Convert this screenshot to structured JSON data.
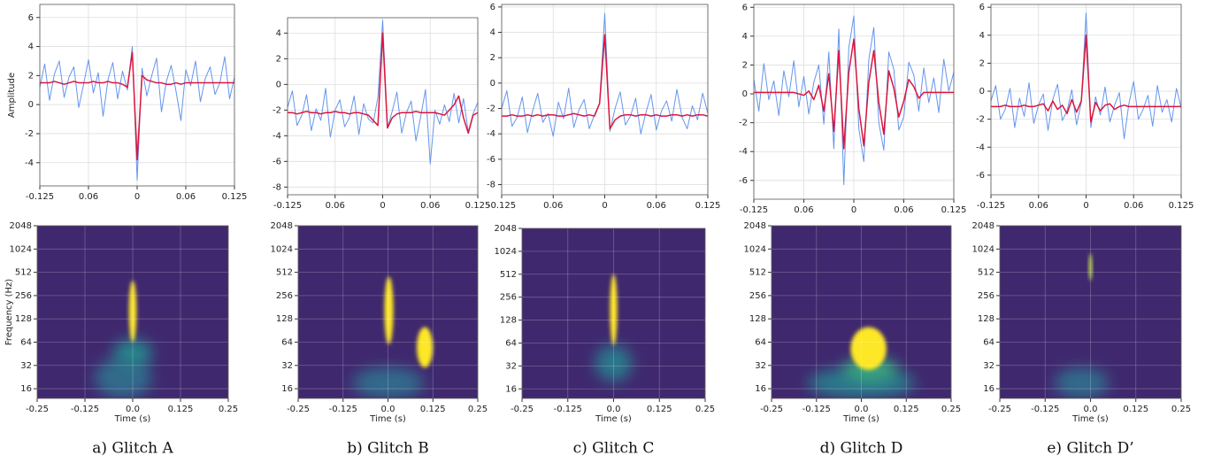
{
  "chart_data": [
    {
      "type": "line",
      "ylabel": "Amplitude",
      "grid": true,
      "x": [
        -0.125,
        -0.11875,
        -0.1125,
        -0.10625,
        -0.1,
        -0.09375,
        -0.0875,
        -0.08125,
        -0.075,
        -0.06875,
        -0.0625,
        -0.05625,
        -0.05,
        -0.04375,
        -0.0375,
        -0.03125,
        -0.025,
        -0.01875,
        -0.0125,
        -0.00625,
        0,
        0.00625,
        0.0125,
        0.01875,
        0.025,
        0.03125,
        0.0375,
        0.04375,
        0.05,
        0.05625,
        0.0625,
        0.06875,
        0.075,
        0.08125,
        0.0875,
        0.09375,
        0.1,
        0.10625,
        0.1125,
        0.11875,
        0.125
      ],
      "series": [
        {
          "color": "#6495ed",
          "values": [
            1.2,
            2.8,
            0.3,
            2.1,
            3.0,
            0.5,
            1.9,
            2.6,
            -0.2,
            1.4,
            3.1,
            0.8,
            2.2,
            -0.8,
            1.7,
            2.9,
            0.4,
            2.3,
            1.0,
            4.0,
            -5.2,
            2.5,
            0.6,
            2.0,
            3.2,
            -0.5,
            1.6,
            2.7,
            0.9,
            -1.1,
            2.4,
            1.3,
            3.0,
            0.2,
            1.8,
            2.6,
            0.7,
            1.5,
            3.3,
            0.4,
            1.9
          ]
        },
        {
          "color": "#dc143c",
          "values": [
            1.5,
            1.5,
            1.5,
            1.6,
            1.5,
            1.4,
            1.5,
            1.6,
            1.5,
            1.5,
            1.5,
            1.6,
            1.5,
            1.5,
            1.6,
            1.5,
            1.5,
            1.4,
            1.2,
            3.6,
            -3.8,
            2.0,
            1.7,
            1.6,
            1.5,
            1.5,
            1.4,
            1.4,
            1.5,
            1.4,
            1.5,
            1.5,
            1.5,
            1.5,
            1.5,
            1.5,
            1.5,
            1.5,
            1.5,
            1.5,
            1.5
          ]
        }
      ],
      "xlim": [
        -0.125,
        0.125
      ],
      "xticks": [
        -0.125,
        {
          "value": -0.0625,
          "label": "0.06"
        },
        0,
        {
          "value": 0.0625,
          "label": "0.06"
        },
        0.125
      ],
      "ylim": [
        -5.6,
        6.9
      ],
      "yticks": [
        -4,
        -2,
        0,
        2,
        4,
        6
      ]
    },
    {
      "type": "line",
      "grid": true,
      "x": [
        -0.125,
        -0.11875,
        -0.1125,
        -0.10625,
        -0.1,
        -0.09375,
        -0.0875,
        -0.08125,
        -0.075,
        -0.06875,
        -0.0625,
        -0.05625,
        -0.05,
        -0.04375,
        -0.0375,
        -0.03125,
        -0.025,
        -0.01875,
        -0.0125,
        -0.00625,
        0,
        0.00625,
        0.0125,
        0.01875,
        0.025,
        0.03125,
        0.0375,
        0.04375,
        0.05,
        0.05625,
        0.0625,
        0.06875,
        0.075,
        0.08125,
        0.0875,
        0.09375,
        0.1,
        0.10625,
        0.1125,
        0.11875,
        0.125
      ],
      "series": [
        {
          "color": "#6495ed",
          "values": [
            -1.8,
            -0.5,
            -3.2,
            -2.4,
            -0.8,
            -3.6,
            -1.9,
            -2.8,
            -0.3,
            -4.1,
            -2.0,
            -1.2,
            -3.3,
            -2.6,
            -0.9,
            -3.9,
            -1.5,
            -2.7,
            -3.0,
            -1.0,
            5.0,
            -3.4,
            -2.1,
            -0.6,
            -3.8,
            -2.2,
            -1.3,
            -4.4,
            -2.5,
            -0.4,
            -6.2,
            -2.0,
            -3.1,
            -1.6,
            -2.9,
            -0.7,
            -3.0,
            -1.1,
            -3.7,
            -2.3,
            -1.4
          ]
        },
        {
          "color": "#dc143c",
          "values": [
            -2.2,
            -2.2,
            -2.3,
            -2.2,
            -2.1,
            -2.2,
            -2.2,
            -2.3,
            -2.2,
            -2.2,
            -2.1,
            -2.2,
            -2.2,
            -2.3,
            -2.2,
            -2.2,
            -2.3,
            -2.4,
            -2.8,
            -3.2,
            4.0,
            -3.4,
            -2.6,
            -2.3,
            -2.2,
            -2.2,
            -2.2,
            -2.1,
            -2.2,
            -2.2,
            -2.2,
            -2.2,
            -2.3,
            -2.4,
            -2.0,
            -1.6,
            -0.9,
            -2.6,
            -3.8,
            -2.4,
            -2.2
          ]
        }
      ],
      "xlim": [
        -0.125,
        0.125
      ],
      "xticks": [
        -0.125,
        {
          "value": -0.0625,
          "label": "0.06"
        },
        0,
        {
          "value": 0.0625,
          "label": "0.06"
        },
        0.125
      ],
      "ylim": [
        -8.6,
        5.2
      ],
      "yticks": [
        -8,
        -6,
        -4,
        -2,
        0,
        2,
        4
      ]
    },
    {
      "type": "line",
      "grid": true,
      "x": [
        -0.125,
        -0.11875,
        -0.1125,
        -0.10625,
        -0.1,
        -0.09375,
        -0.0875,
        -0.08125,
        -0.075,
        -0.06875,
        -0.0625,
        -0.05625,
        -0.05,
        -0.04375,
        -0.0375,
        -0.03125,
        -0.025,
        -0.01875,
        -0.0125,
        -0.00625,
        0,
        0.00625,
        0.0125,
        0.01875,
        0.025,
        0.03125,
        0.0375,
        0.04375,
        0.05,
        0.05625,
        0.0625,
        0.06875,
        0.075,
        0.08125,
        0.0875,
        0.09375,
        0.1,
        0.10625,
        0.1125,
        0.11875,
        0.125
      ],
      "series": [
        {
          "color": "#6495ed",
          "values": [
            -2.0,
            -0.6,
            -3.4,
            -2.7,
            -1.1,
            -3.9,
            -2.2,
            -0.8,
            -3.1,
            -2.4,
            -4.2,
            -1.5,
            -2.8,
            -0.4,
            -3.5,
            -2.1,
            -1.3,
            -3.6,
            -2.5,
            -1.6,
            5.5,
            -3.8,
            -2.0,
            -0.7,
            -3.3,
            -2.6,
            -1.2,
            -4.0,
            -2.3,
            -0.9,
            -3.7,
            -2.2,
            -1.4,
            -3.0,
            -0.5,
            -2.7,
            -3.6,
            -1.8,
            -2.9,
            -0.8,
            -2.4
          ]
        },
        {
          "color": "#dc143c",
          "values": [
            -2.6,
            -2.6,
            -2.5,
            -2.6,
            -2.6,
            -2.5,
            -2.6,
            -2.5,
            -2.6,
            -2.5,
            -2.5,
            -2.6,
            -2.6,
            -2.5,
            -2.4,
            -2.5,
            -2.6,
            -2.5,
            -2.6,
            -1.6,
            3.8,
            -3.6,
            -2.9,
            -2.6,
            -2.5,
            -2.5,
            -2.6,
            -2.5,
            -2.5,
            -2.6,
            -2.5,
            -2.6,
            -2.6,
            -2.5,
            -2.5,
            -2.6,
            -2.5,
            -2.6,
            -2.5,
            -2.5,
            -2.6
          ]
        }
      ],
      "xlim": [
        -0.125,
        0.125
      ],
      "xticks": [
        -0.125,
        {
          "value": -0.0625,
          "label": "0.06"
        },
        0,
        {
          "value": 0.0625,
          "label": "0.06"
        },
        0.125
      ],
      "ylim": [
        -8.8,
        6.2
      ],
      "yticks": [
        -8,
        -6,
        -4,
        -2,
        0,
        2,
        4,
        6
      ]
    },
    {
      "type": "line",
      "grid": true,
      "x": [
        -0.125,
        -0.11875,
        -0.1125,
        -0.10625,
        -0.1,
        -0.09375,
        -0.0875,
        -0.08125,
        -0.075,
        -0.06875,
        -0.0625,
        -0.05625,
        -0.05,
        -0.04375,
        -0.0375,
        -0.03125,
        -0.025,
        -0.01875,
        -0.0125,
        -0.00625,
        0,
        0.00625,
        0.0125,
        0.01875,
        0.025,
        0.03125,
        0.0375,
        0.04375,
        0.05,
        0.05625,
        0.0625,
        0.06875,
        0.075,
        0.08125,
        0.0875,
        0.09375,
        0.1,
        0.10625,
        0.1125,
        0.11875,
        0.125
      ],
      "series": [
        {
          "color": "#6495ed",
          "values": [
            1.0,
            -1.2,
            2.1,
            -0.4,
            0.9,
            -1.5,
            1.6,
            -0.2,
            2.3,
            -0.9,
            1.2,
            -1.4,
            0.8,
            2.0,
            -2.1,
            2.9,
            -3.8,
            4.5,
            -6.3,
            3.2,
            5.4,
            -2.4,
            -4.7,
            2.4,
            4.6,
            -2.0,
            -3.9,
            2.9,
            1.7,
            -2.5,
            -1.6,
            2.2,
            1.3,
            -1.2,
            1.8,
            -0.6,
            1.1,
            -1.3,
            2.4,
            0.2,
            1.5
          ]
        },
        {
          "color": "#dc143c",
          "values": [
            0.1,
            0.1,
            0.1,
            0.1,
            0.1,
            0.1,
            0.1,
            0.1,
            0.1,
            0.0,
            -0.1,
            0.2,
            -0.4,
            0.6,
            -1.2,
            1.4,
            -2.6,
            3.0,
            -3.8,
            1.5,
            3.8,
            -1.0,
            -3.6,
            0.8,
            3.0,
            -0.6,
            -2.8,
            1.6,
            0.4,
            -1.6,
            -0.5,
            1.0,
            0.5,
            -0.3,
            0.1,
            0.1,
            0.1,
            0.1,
            0.1,
            0.1,
            0.1
          ]
        }
      ],
      "xlim": [
        -0.125,
        0.125
      ],
      "xticks": [
        -0.125,
        {
          "value": -0.0625,
          "label": "0.06"
        },
        0,
        {
          "value": 0.0625,
          "label": "0.06"
        },
        0.125
      ],
      "ylim": [
        -7.3,
        6.2
      ],
      "yticks": [
        -6,
        -4,
        -2,
        0,
        2,
        4,
        6
      ]
    },
    {
      "type": "line",
      "grid": true,
      "x": [
        -0.125,
        -0.11875,
        -0.1125,
        -0.10625,
        -0.1,
        -0.09375,
        -0.0875,
        -0.08125,
        -0.075,
        -0.06875,
        -0.0625,
        -0.05625,
        -0.05,
        -0.04375,
        -0.0375,
        -0.03125,
        -0.025,
        -0.01875,
        -0.0125,
        -0.00625,
        0,
        0.00625,
        0.0125,
        0.01875,
        0.025,
        0.03125,
        0.0375,
        0.04375,
        0.05,
        0.05625,
        0.0625,
        0.06875,
        0.075,
        0.08125,
        0.0875,
        0.09375,
        0.1,
        0.10625,
        0.1125,
        0.11875,
        0.125
      ],
      "series": [
        {
          "color": "#6495ed",
          "values": [
            -0.7,
            0.4,
            -2.0,
            -1.3,
            0.2,
            -2.6,
            -0.5,
            -1.8,
            0.6,
            -2.3,
            -1.0,
            -0.2,
            -2.8,
            -0.6,
            0.5,
            -2.1,
            -1.4,
            0.1,
            -2.4,
            -0.8,
            5.6,
            -2.6,
            -0.4,
            -1.7,
            0.3,
            -2.2,
            -1.0,
            -0.1,
            -3.4,
            -0.9,
            0.7,
            -2.0,
            -1.3,
            -0.3,
            -2.5,
            0.4,
            -1.5,
            -0.6,
            -2.2,
            0.2,
            -1.2
          ]
        },
        {
          "color": "#dc143c",
          "values": [
            -1.1,
            -1.1,
            -1.1,
            -1.0,
            -1.1,
            -1.1,
            -1.1,
            -1.0,
            -1.1,
            -1.1,
            -1.0,
            -0.9,
            -1.4,
            -0.7,
            -1.3,
            -1.0,
            -1.6,
            -0.6,
            -1.5,
            -0.7,
            4.0,
            -2.2,
            -0.8,
            -1.4,
            -1.0,
            -0.9,
            -1.3,
            -1.1,
            -1.0,
            -1.1,
            -1.1,
            -1.1,
            -1.1,
            -1.1,
            -1.1,
            -1.1,
            -1.1,
            -1.1,
            -1.1,
            -1.1,
            -1.1
          ]
        }
      ],
      "xlim": [
        -0.125,
        0.125
      ],
      "xticks": [
        -0.125,
        {
          "value": -0.0625,
          "label": "0.06"
        },
        0,
        {
          "value": 0.0625,
          "label": "0.06"
        },
        0.125
      ],
      "ylim": [
        -7.4,
        6.2
      ],
      "yticks": [
        -6,
        -4,
        -2,
        0,
        2,
        4,
        6
      ]
    },
    {
      "type": "spectrogram",
      "xlabel": "Time (s)",
      "ylabel": "Frequency (Hz)",
      "caption": "a) Glitch A",
      "ylog": true,
      "grid": true,
      "background_intensity": 0.12,
      "xlim": [
        -0.25,
        0.25
      ],
      "xticks": [
        -0.25,
        -0.125,
        {
          "value": 0,
          "label": "0.0"
        },
        0.125,
        0.25
      ],
      "ylim": [
        12,
        2048
      ],
      "yticks": [
        16,
        32,
        64,
        128,
        256,
        512,
        1024,
        2048
      ],
      "regions": [
        {
          "t": [
            -0.1,
            0.05
          ],
          "f": [
            12,
            40
          ],
          "intensity": 0.35
        },
        {
          "t": [
            -0.05,
            0.05
          ],
          "f": [
            30,
            70
          ],
          "intensity": 0.45
        },
        {
          "t": [
            -0.01,
            0.01
          ],
          "f": [
            64,
            400
          ],
          "intensity": 1
        }
      ]
    },
    {
      "type": "spectrogram",
      "xlabel": "Time (s)",
      "caption": "b) Glitch B",
      "ylog": true,
      "grid": true,
      "background_intensity": 0.12,
      "xlim": [
        -0.25,
        0.25
      ],
      "xticks": [
        -0.25,
        -0.125,
        {
          "value": 0,
          "label": "0.0"
        },
        0.125,
        0.25
      ],
      "ylim": [
        12,
        2048
      ],
      "yticks": [
        16,
        32,
        64,
        128,
        256,
        512,
        1024,
        2048
      ],
      "regions": [
        {
          "t": [
            -0.1,
            0.1
          ],
          "f": [
            12,
            30
          ],
          "intensity": 0.35
        },
        {
          "t": [
            -0.01,
            0.015
          ],
          "f": [
            60,
            450
          ],
          "intensity": 1
        },
        {
          "t": [
            0.08,
            0.125
          ],
          "f": [
            30,
            100
          ],
          "intensity": 1
        }
      ]
    },
    {
      "type": "spectrogram",
      "xlabel": "Time (s)",
      "caption": "c) Glitch C",
      "ylog": true,
      "grid": true,
      "background_intensity": 0.12,
      "xlim": [
        -0.25,
        0.25
      ],
      "xticks": [
        -0.25,
        -0.125,
        {
          "value": 0,
          "label": "0.0"
        },
        0.125,
        0.25
      ],
      "ylim": [
        12,
        2048
      ],
      "yticks": [
        16,
        32,
        64,
        128,
        256,
        512,
        1024,
        2048
      ],
      "regions": [
        {
          "t": [
            -0.05,
            0.05
          ],
          "f": [
            20,
            60
          ],
          "intensity": 0.4
        },
        {
          "t": [
            -0.01,
            0.01
          ],
          "f": [
            60,
            512
          ],
          "intensity": 1
        }
      ]
    },
    {
      "type": "spectrogram",
      "xlabel": "Time (s)",
      "caption": "d) Glitch D",
      "ylog": true,
      "grid": true,
      "background_intensity": 0.12,
      "xlim": [
        -0.25,
        0.25
      ],
      "xticks": [
        -0.25,
        -0.125,
        {
          "value": 0,
          "label": "0.0"
        },
        0.125,
        0.25
      ],
      "ylim": [
        12,
        2048
      ],
      "yticks": [
        16,
        32,
        64,
        128,
        256,
        512,
        1024,
        2048
      ],
      "regions": [
        {
          "t": [
            -0.15,
            0.15
          ],
          "f": [
            12,
            30
          ],
          "intensity": 0.4
        },
        {
          "t": [
            -0.05,
            0.1
          ],
          "f": [
            20,
            40
          ],
          "intensity": 0.6
        },
        {
          "t": [
            -0.03,
            0.07
          ],
          "f": [
            28,
            100
          ],
          "intensity": 1
        }
      ]
    },
    {
      "type": "spectrogram",
      "xlabel": "Time (s)",
      "caption": "e) Glitch D’",
      "ylog": true,
      "grid": true,
      "background_intensity": 0.12,
      "xlim": [
        -0.25,
        0.25
      ],
      "xticks": [
        -0.25,
        -0.125,
        {
          "value": 0,
          "label": "0.0"
        },
        0.125,
        0.25
      ],
      "ylim": [
        12,
        2048
      ],
      "yticks": [
        16,
        32,
        64,
        128,
        256,
        512,
        1024,
        2048
      ],
      "regions": [
        {
          "t": [
            -0.1,
            0.05
          ],
          "f": [
            12,
            30
          ],
          "intensity": 0.35
        },
        {
          "t": [
            -0.003,
            0.003
          ],
          "f": [
            400,
            900
          ],
          "intensity": 0.9
        }
      ]
    }
  ]
}
